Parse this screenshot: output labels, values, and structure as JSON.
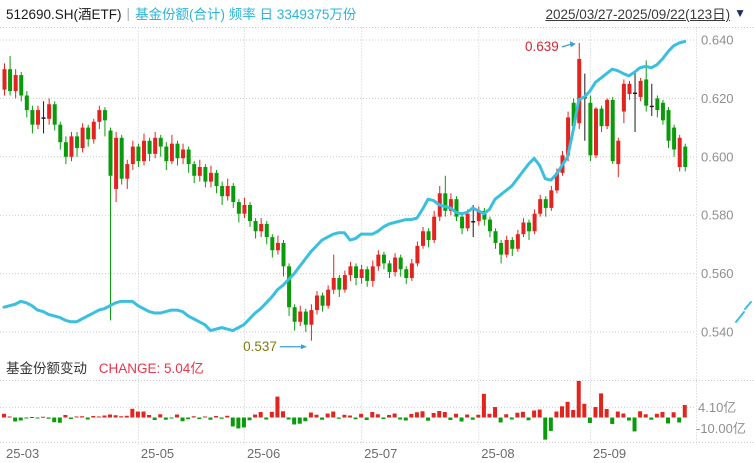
{
  "header": {
    "symbol": "512690.SH(酒ETF)",
    "separator": "|",
    "metric": "基金份额(合计) 频率 日 3349375万份",
    "date_range": "2025/03/27-2025/09/22(123日)",
    "dropdown_icon": "▼"
  },
  "panel2": {
    "title": "基金份额变动",
    "change_label": "CHANGE: 5.04亿"
  },
  "colors": {
    "up": "#e3231e",
    "down": "#0a9b0a",
    "doji": "#1a1a1a",
    "share_line": "#3bbfde",
    "grid": "#c9c9c9",
    "axis_text": "#8f8f8f",
    "month_text": "#6b6b6b",
    "high_note": "#cf2730",
    "low_note": "#7e7b14",
    "arrow": "#3aa0cf",
    "accent_cyan": "#2ab4d8",
    "change_red": "#e8354b"
  },
  "chart_data": {
    "type": "candlestick+line+bar",
    "instrument": "512690.SH(酒ETF)",
    "series_label": "基金份额(合计)",
    "frequency": "日",
    "date_range": "2025/03/27-2025/09/22",
    "days": 123,
    "latest_share_total": "3349375万份",
    "latest_change": "5.04亿",
    "price_axis": {
      "labels": [
        "0.640",
        "0.620",
        "0.600",
        "0.580",
        "0.560",
        "0.540"
      ],
      "values": [
        0.64,
        0.62,
        0.6,
        0.58,
        0.56,
        0.54
      ]
    },
    "volume_axis": {
      "labels": [
        "4.10亿",
        "-10.00亿"
      ],
      "values": [
        4.1,
        -10.0
      ]
    },
    "months": [
      {
        "label": "25-03",
        "index": 0,
        "gridline": false
      },
      {
        "label": "25-05",
        "index": 24,
        "gridline": true
      },
      {
        "label": "25-06",
        "index": 43,
        "gridline": true
      },
      {
        "label": "25-07",
        "index": 64,
        "gridline": true
      },
      {
        "label": "25-08",
        "index": 85,
        "gridline": true
      },
      {
        "label": "25-09",
        "index": 105,
        "gridline": true
      }
    ],
    "high_annotation": {
      "text": "0.639",
      "value": 0.639,
      "index": 103
    },
    "low_annotation": {
      "text": "0.537",
      "value": 0.537,
      "index": 55
    },
    "candles": [
      [
        0.623,
        0.632,
        0.621,
        0.63
      ],
      [
        0.63,
        0.6345,
        0.621,
        0.6225
      ],
      [
        0.6225,
        0.63,
        0.62,
        0.628
      ],
      [
        0.628,
        0.629,
        0.619,
        0.621
      ],
      [
        0.621,
        0.6225,
        0.6135,
        0.616
      ],
      [
        0.616,
        0.6175,
        0.608,
        0.611
      ],
      [
        0.611,
        0.6175,
        0.6095,
        0.616
      ],
      [
        0.6135,
        0.619,
        0.608,
        0.613
      ],
      [
        0.613,
        0.62,
        0.611,
        0.618
      ],
      [
        0.618,
        0.619,
        0.609,
        0.611
      ],
      [
        0.611,
        0.612,
        0.6025,
        0.605
      ],
      [
        0.605,
        0.607,
        0.5975,
        0.6
      ],
      [
        0.6,
        0.6085,
        0.5985,
        0.607
      ],
      [
        0.607,
        0.6085,
        0.6,
        0.603
      ],
      [
        0.603,
        0.6115,
        0.6015,
        0.61
      ],
      [
        0.61,
        0.611,
        0.6035,
        0.606
      ],
      [
        0.606,
        0.613,
        0.6045,
        0.612
      ],
      [
        0.612,
        0.6175,
        0.6095,
        0.616
      ],
      [
        0.616,
        0.617,
        0.607,
        0.6125
      ],
      [
        0.609,
        0.61,
        0.544,
        0.5935
      ],
      [
        0.589,
        0.6085,
        0.5845,
        0.6065
      ],
      [
        0.6065,
        0.6075,
        0.5905,
        0.5925
      ],
      [
        0.5925,
        0.599,
        0.589,
        0.5975
      ],
      [
        0.5975,
        0.6055,
        0.5955,
        0.6035
      ],
      [
        0.6035,
        0.6045,
        0.5965,
        0.5985
      ],
      [
        0.5985,
        0.608,
        0.597,
        0.6055
      ],
      [
        0.6055,
        0.6065,
        0.5985,
        0.601
      ],
      [
        0.601,
        0.6085,
        0.5995,
        0.6065
      ],
      [
        0.6065,
        0.6075,
        0.6,
        0.6035
      ],
      [
        0.6035,
        0.605,
        0.5955,
        0.5985
      ],
      [
        0.5985,
        0.6075,
        0.5975,
        0.6045
      ],
      [
        0.6045,
        0.6055,
        0.597,
        0.5995
      ],
      [
        0.5995,
        0.6045,
        0.5975,
        0.6025
      ],
      [
        0.6025,
        0.6035,
        0.5945,
        0.5975
      ],
      [
        0.5975,
        0.5985,
        0.591,
        0.5935
      ],
      [
        0.5935,
        0.599,
        0.5915,
        0.5965
      ],
      [
        0.5965,
        0.5975,
        0.5895,
        0.5915
      ],
      [
        0.5915,
        0.597,
        0.5895,
        0.5945
      ],
      [
        0.5945,
        0.5955,
        0.5875,
        0.59
      ],
      [
        0.59,
        0.5915,
        0.5835,
        0.5865
      ],
      [
        0.5865,
        0.5925,
        0.585,
        0.59
      ],
      [
        0.59,
        0.591,
        0.5825,
        0.5845
      ],
      [
        0.5845,
        0.5855,
        0.5775,
        0.5805
      ],
      [
        0.5805,
        0.586,
        0.579,
        0.5835
      ],
      [
        0.5835,
        0.5845,
        0.576,
        0.578
      ],
      [
        0.578,
        0.579,
        0.572,
        0.5745
      ],
      [
        0.5745,
        0.579,
        0.5725,
        0.577
      ],
      [
        0.577,
        0.578,
        0.57,
        0.5725
      ],
      [
        0.5725,
        0.5735,
        0.5655,
        0.568
      ],
      [
        0.568,
        0.573,
        0.5665,
        0.5705
      ],
      [
        0.5705,
        0.5715,
        0.559,
        0.5625
      ],
      [
        0.5625,
        0.5635,
        0.5455,
        0.5485
      ],
      [
        0.5485,
        0.5495,
        0.5405,
        0.5435
      ],
      [
        0.5435,
        0.549,
        0.542,
        0.547
      ],
      [
        0.547,
        0.548,
        0.54,
        0.5425
      ],
      [
        0.5425,
        0.5495,
        0.537,
        0.5475
      ],
      [
        0.5475,
        0.554,
        0.546,
        0.5525
      ],
      [
        0.5525,
        0.5535,
        0.547,
        0.549
      ],
      [
        0.549,
        0.556,
        0.548,
        0.5545
      ],
      [
        0.5545,
        0.5665,
        0.553,
        0.5585
      ],
      [
        0.5585,
        0.5595,
        0.552,
        0.5545
      ],
      [
        0.5545,
        0.561,
        0.5535,
        0.5595
      ],
      [
        0.5595,
        0.564,
        0.5575,
        0.5625
      ],
      [
        0.5625,
        0.5635,
        0.556,
        0.5585
      ],
      [
        0.5585,
        0.563,
        0.5565,
        0.5615
      ],
      [
        0.5615,
        0.5625,
        0.5555,
        0.5575
      ],
      [
        0.5575,
        0.5645,
        0.5555,
        0.5625
      ],
      [
        0.5625,
        0.568,
        0.561,
        0.5665
      ],
      [
        0.5665,
        0.5675,
        0.5615,
        0.5635
      ],
      [
        0.5635,
        0.5645,
        0.5585,
        0.5605
      ],
      [
        0.5605,
        0.567,
        0.559,
        0.5655
      ],
      [
        0.5655,
        0.5665,
        0.559,
        0.5615
      ],
      [
        0.5615,
        0.5625,
        0.5565,
        0.5585
      ],
      [
        0.5585,
        0.565,
        0.5575,
        0.5635
      ],
      [
        0.5635,
        0.571,
        0.5625,
        0.5695
      ],
      [
        0.5695,
        0.576,
        0.5685,
        0.5745
      ],
      [
        0.5745,
        0.5755,
        0.569,
        0.5715
      ],
      [
        0.5715,
        0.5815,
        0.5705,
        0.5795
      ],
      [
        0.5795,
        0.59,
        0.578,
        0.5875
      ],
      [
        0.5875,
        0.5935,
        0.5795,
        0.5815
      ],
      [
        0.5815,
        0.5875,
        0.58,
        0.5855
      ],
      [
        0.5855,
        0.5865,
        0.578,
        0.5795
      ],
      [
        0.5795,
        0.5805,
        0.5735,
        0.5755
      ],
      [
        0.5755,
        0.582,
        0.5745,
        0.5805
      ],
      [
        0.5775,
        0.5835,
        0.5725,
        0.578
      ],
      [
        0.578,
        0.583,
        0.5765,
        0.5815
      ],
      [
        0.5815,
        0.5825,
        0.5765,
        0.5785
      ],
      [
        0.5785,
        0.5795,
        0.5725,
        0.5745
      ],
      [
        0.5745,
        0.5755,
        0.5685,
        0.5705
      ],
      [
        0.5705,
        0.5715,
        0.5635,
        0.5665
      ],
      [
        0.5665,
        0.573,
        0.5655,
        0.5715
      ],
      [
        0.5715,
        0.5725,
        0.566,
        0.5685
      ],
      [
        0.5685,
        0.575,
        0.5675,
        0.5735
      ],
      [
        0.5735,
        0.579,
        0.5725,
        0.5775
      ],
      [
        0.5775,
        0.5785,
        0.5715,
        0.5745
      ],
      [
        0.5745,
        0.582,
        0.5735,
        0.5805
      ],
      [
        0.5805,
        0.587,
        0.5795,
        0.5855
      ],
      [
        0.5855,
        0.5865,
        0.5795,
        0.5825
      ],
      [
        0.5825,
        0.59,
        0.5815,
        0.5885
      ],
      [
        0.5885,
        0.596,
        0.5875,
        0.5945
      ],
      [
        0.5945,
        0.602,
        0.5935,
        0.6005
      ],
      [
        0.6005,
        0.6155,
        0.5985,
        0.6135
      ],
      [
        0.6185,
        0.62,
        0.6085,
        0.6105
      ],
      [
        0.6115,
        0.639,
        0.6095,
        0.6335
      ],
      [
        0.62,
        0.6285,
        0.6055,
        0.6205
      ],
      [
        0.6185,
        0.621,
        0.5985,
        0.6005
      ],
      [
        0.6005,
        0.617,
        0.5995,
        0.6165
      ],
      [
        0.6165,
        0.6175,
        0.6085,
        0.6105
      ],
      [
        0.6105,
        0.62,
        0.6095,
        0.6195
      ],
      [
        0.6195,
        0.6205,
        0.5975,
        0.5985
      ],
      [
        0.5975,
        0.6065,
        0.593,
        0.6055
      ],
      [
        0.6155,
        0.6265,
        0.6115,
        0.625
      ],
      [
        0.6215,
        0.626,
        0.6195,
        0.625
      ],
      [
        0.6215,
        0.629,
        0.6085,
        0.622
      ],
      [
        0.6205,
        0.627,
        0.619,
        0.626
      ],
      [
        0.6265,
        0.633,
        0.6155,
        0.6175
      ],
      [
        0.617,
        0.625,
        0.614,
        0.6175
      ],
      [
        0.62,
        0.621,
        0.6135,
        0.616
      ],
      [
        0.6185,
        0.6195,
        0.611,
        0.6125
      ],
      [
        0.616,
        0.617,
        0.603,
        0.6055
      ],
      [
        0.61,
        0.611,
        0.6,
        0.6025
      ],
      [
        0.5965,
        0.6075,
        0.595,
        0.6065
      ],
      [
        0.6035,
        0.6045,
        0.595,
        0.5965
      ]
    ],
    "share_line_price_scale": [
      0.5485,
      0.549,
      0.5495,
      0.5505,
      0.55,
      0.549,
      0.5475,
      0.547,
      0.546,
      0.5455,
      0.545,
      0.544,
      0.5435,
      0.5435,
      0.5445,
      0.5455,
      0.5465,
      0.5475,
      0.548,
      0.549,
      0.55,
      0.5505,
      0.5505,
      0.5505,
      0.549,
      0.548,
      0.547,
      0.5465,
      0.5465,
      0.547,
      0.5475,
      0.5475,
      0.547,
      0.5455,
      0.5445,
      0.5435,
      0.5425,
      0.5405,
      0.541,
      0.5415,
      0.541,
      0.5405,
      0.5415,
      0.5425,
      0.5445,
      0.5465,
      0.548,
      0.55,
      0.552,
      0.5545,
      0.556,
      0.558,
      0.56,
      0.5625,
      0.565,
      0.5675,
      0.5695,
      0.5715,
      0.5725,
      0.5735,
      0.574,
      0.574,
      0.5715,
      0.572,
      0.5735,
      0.5735,
      0.5735,
      0.5745,
      0.576,
      0.577,
      0.5775,
      0.578,
      0.5785,
      0.5785,
      0.579,
      0.582,
      0.5855,
      0.585,
      0.5835,
      0.583,
      0.5825,
      0.581,
      0.5805,
      0.581,
      0.5825,
      0.5815,
      0.5805,
      0.582,
      0.5855,
      0.587,
      0.5885,
      0.59,
      0.5925,
      0.595,
      0.5975,
      0.5995,
      0.597,
      0.5925,
      0.592,
      0.594,
      0.597,
      0.6,
      0.609,
      0.6195,
      0.6205,
      0.6225,
      0.6255,
      0.627,
      0.6285,
      0.63,
      0.6295,
      0.6285,
      0.6277,
      0.629,
      0.6305,
      0.631,
      0.6305,
      0.6315,
      0.6335,
      0.636,
      0.638,
      0.639,
      0.6395
    ],
    "share_change_bars_yi": [
      1.5,
      0.4,
      -1.6,
      -1.2,
      -0.3,
      0.2,
      -0.4,
      0.3,
      -0.5,
      -1.9,
      -2.1,
      1.0,
      -0.6,
      0.4,
      0.5,
      -0.8,
      0.6,
      0.4,
      0.8,
      1.2,
      0.9,
      0.5,
      0.7,
      3.5,
      2.4,
      2.4,
      1.0,
      -1.0,
      1.3,
      -0.9,
      -0.4,
      1.2,
      -1.5,
      -0.7,
      0.5,
      -0.6,
      0.4,
      -0.9,
      0.6,
      -0.5,
      0.7,
      -3.6,
      -4.4,
      -4.0,
      -1.1,
      1.2,
      2.2,
      -0.8,
      2.3,
      8.4,
      2.5,
      -0.8,
      -2.8,
      -2.5,
      -1.5,
      2.0,
      1.1,
      -0.9,
      1.6,
      2.4,
      -0.5,
      1.1,
      0.8,
      -0.7,
      1.5,
      -1.0,
      2.2,
      1.3,
      -0.6,
      1.0,
      1.6,
      -0.8,
      -1.2,
      1.4,
      2.1,
      2.5,
      -1.3,
      1.8,
      2.6,
      2.2,
      -1.0,
      1.5,
      -1.6,
      1.2,
      -0.9,
      1.1,
      9.5,
      1.5,
      4.2,
      -2.0,
      1.3,
      -0.8,
      1.9,
      2.3,
      -1.1,
      2.8,
      3.2,
      -8.9,
      -5.4,
      2.4,
      4.5,
      6.3,
      3.0,
      14.7,
      5.5,
      -2.2,
      4.2,
      9.7,
      3.4,
      -2.6,
      2.4,
      1.6,
      -1.2,
      -5.6,
      2.5,
      1.3,
      -0.9,
      1.5,
      2.2,
      -2.4,
      2.1,
      -2.0,
      5.04
    ]
  }
}
